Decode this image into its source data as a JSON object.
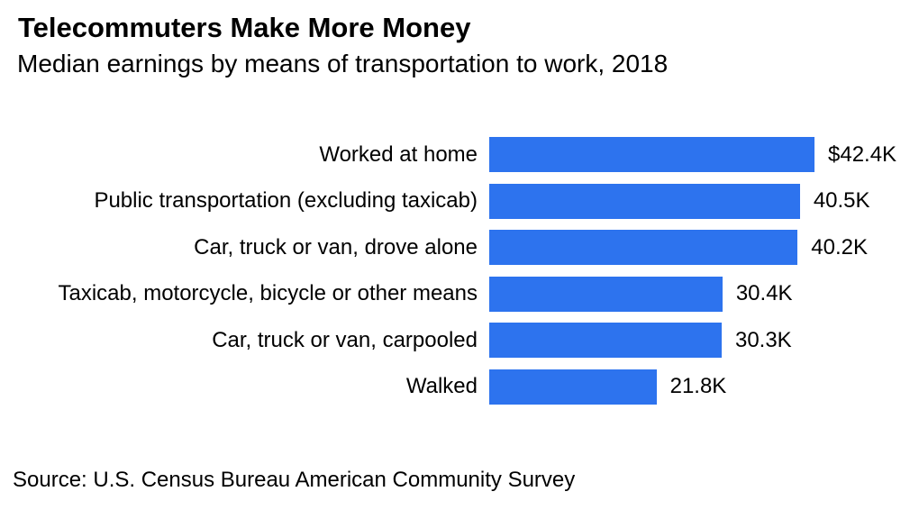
{
  "chart_data": {
    "type": "bar",
    "orientation": "horizontal",
    "title": "Telecommuters Make More Money",
    "subtitle": "Median earnings by means of transportation to work, 2018",
    "source": "Source: U.S. Census Bureau American Community Survey",
    "categories": [
      "Worked at home",
      "Public transportation (excluding taxicab)",
      "Car, truck or van, drove alone",
      "Taxicab, motorcycle, bicycle or other means",
      "Car, truck or van, carpooled",
      "Walked"
    ],
    "values": [
      42.4,
      40.5,
      40.2,
      30.4,
      30.3,
      21.8
    ],
    "value_labels": [
      "$42.4K",
      "40.5K",
      "40.2K",
      "30.4K",
      "30.3K",
      "21.8K"
    ],
    "xlabel": "",
    "ylabel": "",
    "xlim": [
      0,
      42.4
    ],
    "grid": false,
    "legend_position": "none",
    "bar_color": "#2D73EE",
    "text_color": "#000000",
    "background_color": "#FFFFFF"
  }
}
